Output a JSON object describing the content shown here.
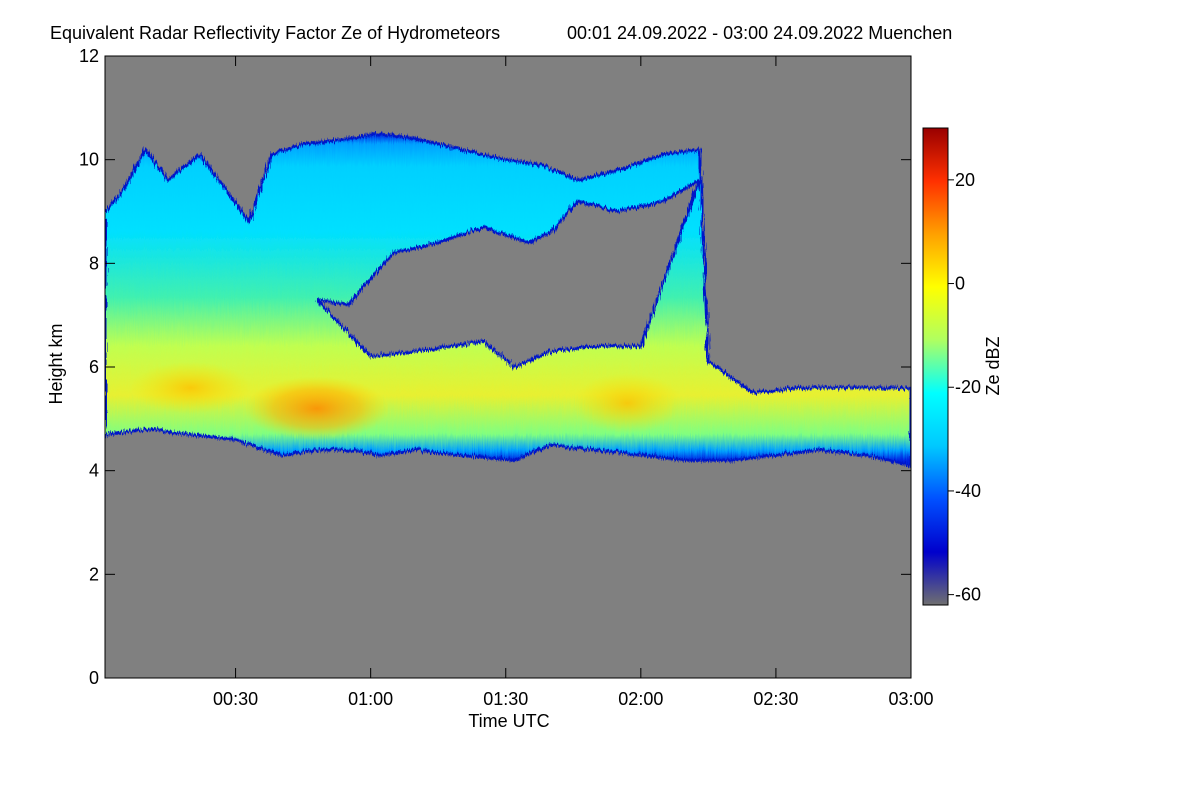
{
  "chart_data": {
    "type": "heatmap",
    "title": "Equivalent Radar Reflectivity Factor Ze of Hydrometeors",
    "subtitle": "00:01 24.09.2022 - 03:00 24.09.2022 Muenchen",
    "xlabel": "Time UTC",
    "ylabel": "Height km",
    "x_ticks": [
      "00:30",
      "01:00",
      "01:30",
      "02:00",
      "02:30",
      "03:00"
    ],
    "x_tick_minutes": [
      30,
      60,
      90,
      120,
      150,
      180
    ],
    "xlim_minutes": [
      1,
      180
    ],
    "y_ticks": [
      0,
      2,
      4,
      6,
      8,
      10,
      12
    ],
    "ylim": [
      0,
      12
    ],
    "grid": false,
    "background_color": "#808080",
    "colorbar": {
      "label": "Ze dBZ",
      "ticks": [
        20,
        0,
        -20,
        -40,
        -60
      ],
      "range": [
        -62,
        30
      ],
      "placement": "right",
      "colors": [
        "#707070",
        "#0000cc",
        "#0050ff",
        "#00c8ff",
        "#00ffff",
        "#b0ff60",
        "#ffff00",
        "#ffa000",
        "#ff3000",
        "#990000"
      ]
    },
    "layers": [
      {
        "name": "",
        "time_start": 1,
        "time_end": 180,
        "top_profile": [
          [
            1,
            9.0
          ],
          [
            5,
            9.4
          ],
          [
            10,
            10.2
          ],
          [
            15,
            9.6
          ],
          [
            22,
            10.1
          ],
          [
            28,
            9.4
          ],
          [
            33,
            8.8
          ],
          [
            38,
            10.1
          ],
          [
            45,
            10.3
          ],
          [
            55,
            10.4
          ],
          [
            62,
            10.5
          ],
          [
            70,
            10.4
          ],
          [
            80,
            10.2
          ],
          [
            90,
            10.0
          ],
          [
            98,
            9.9
          ],
          [
            106,
            9.6
          ],
          [
            115,
            9.8
          ],
          [
            125,
            10.1
          ],
          [
            133,
            10.2
          ]
        ],
        "base_profile": [
          [
            1,
            4.7
          ],
          [
            10,
            4.8
          ],
          [
            20,
            4.7
          ],
          [
            30,
            4.6
          ],
          [
            40,
            4.3
          ],
          [
            48,
            4.4
          ],
          [
            55,
            4.4
          ],
          [
            62,
            4.3
          ],
          [
            70,
            4.4
          ],
          [
            80,
            4.3
          ],
          [
            92,
            4.2
          ],
          [
            100,
            4.5
          ],
          [
            110,
            4.4
          ],
          [
            120,
            4.3
          ],
          [
            130,
            4.2
          ],
          [
            140,
            4.2
          ],
          [
            150,
            4.3
          ],
          [
            160,
            4.4
          ],
          [
            170,
            4.3
          ],
          [
            180,
            4.1
          ]
        ],
        "gap_top_profile": [
          [
            48,
            7.3
          ],
          [
            55,
            7.2
          ],
          [
            65,
            8.2
          ],
          [
            75,
            8.4
          ],
          [
            85,
            8.7
          ],
          [
            95,
            8.4
          ],
          [
            100,
            8.6
          ],
          [
            106,
            9.2
          ],
          [
            115,
            9.0
          ],
          [
            125,
            9.2
          ],
          [
            133,
            9.6
          ]
        ],
        "gap_base_profile": [
          [
            60,
            6.2
          ],
          [
            70,
            6.3
          ],
          [
            85,
            6.5
          ],
          [
            92,
            6.0
          ],
          [
            100,
            6.3
          ],
          [
            110,
            6.4
          ],
          [
            120,
            6.4
          ],
          [
            135,
            6.1
          ],
          [
            145,
            5.5
          ],
          [
            155,
            5.6
          ],
          [
            165,
            5.6
          ],
          [
            180,
            5.6
          ]
        ]
      }
    ],
    "max_reflectivity_region": {
      "time_minutes": 48,
      "height_km": 5.2,
      "ze_dbz": 8
    }
  }
}
